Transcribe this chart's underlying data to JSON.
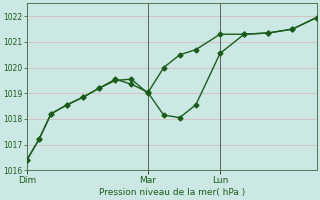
{
  "bg_color": "#cce8e4",
  "grid_color": "#d4b8b8",
  "line_color": "#1a5c1a",
  "marker": "D",
  "markersize": 2.5,
  "linewidth": 1.0,
  "xlabel": "Pression niveau de la mer( hPa )",
  "ylim": [
    1016,
    1022.5
  ],
  "yticks": [
    1016,
    1017,
    1018,
    1019,
    1020,
    1021,
    1022
  ],
  "xlim": [
    0,
    36
  ],
  "day_labels": [
    "Dim",
    "Mar",
    "Lun"
  ],
  "day_positions": [
    0,
    15,
    24
  ],
  "vline_color": "#556655",
  "line1_x": [
    0,
    1.5,
    3,
    5,
    7,
    9,
    11,
    13,
    15,
    17,
    19,
    21,
    24,
    27,
    30,
    33,
    36
  ],
  "line1_y": [
    1016.4,
    1017.2,
    1018.2,
    1018.55,
    1018.85,
    1019.2,
    1019.55,
    1019.35,
    1019.05,
    1018.15,
    1018.05,
    1018.55,
    1020.55,
    1021.3,
    1021.35,
    1021.5,
    1021.95
  ],
  "line2_x": [
    0,
    1.5,
    3,
    5,
    7,
    9,
    11,
    13,
    15,
    17,
    19,
    21,
    24,
    27,
    30,
    33,
    36
  ],
  "line2_y": [
    1016.4,
    1017.2,
    1018.2,
    1018.55,
    1018.85,
    1019.2,
    1019.5,
    1019.55,
    1019.0,
    1020.0,
    1020.5,
    1020.7,
    1021.3,
    1021.3,
    1021.35,
    1021.5,
    1021.95
  ]
}
